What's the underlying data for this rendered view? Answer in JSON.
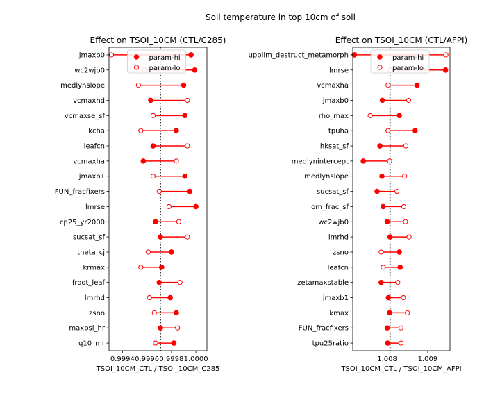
{
  "suptitle": "Soil temperature in top 10cm of soil",
  "colors": {
    "hi": "#ff0000",
    "lo": "#ff0000",
    "connector": "#ff0000",
    "refline": "#000000"
  },
  "chart_data": [
    {
      "type": "scatter",
      "title": "Effect on TSOI_10CM (CTL/C285)",
      "xlabel": "TSOI_10CM_CTL / TSOI_10CM_C285",
      "xlim": [
        0.99929,
        1.00009
      ],
      "xticks": [
        0.9994,
        0.9996,
        0.9998,
        1.0
      ],
      "xtick_labels": [
        "0.9994",
        "0.9996",
        "0.9998",
        "1.0000"
      ],
      "ref_x": 0.99971,
      "legend": {
        "position": "top-center",
        "entries": [
          "param-hi",
          "param-lo"
        ]
      },
      "categories": [
        "jmaxb0",
        "wc2wjb0",
        "medlynslope",
        "vcmaxhd",
        "vcmaxse_sf",
        "kcha",
        "leafcn",
        "vcmaxha",
        "jmaxb1",
        "FUN_fracfixers",
        "lmrse",
        "cp25_yr2000",
        "sucsat_sf",
        "theta_cj",
        "krmax",
        "froot_leaf",
        "lmrhd",
        "zsno",
        "maxpsi_hr",
        "q10_mr"
      ],
      "series": [
        {
          "name": "param-hi",
          "values": [
            0.99996,
            0.99999,
            0.9999,
            0.99963,
            0.99991,
            0.99984,
            0.99965,
            0.99957,
            0.99991,
            0.99995,
            1.0,
            0.99967,
            0.99971,
            0.9998,
            0.99972,
            0.9997,
            0.99979,
            0.99984,
            0.99971,
            0.99982
          ]
        },
        {
          "name": "param-lo",
          "values": [
            0.99931,
            0.99958,
            0.99953,
            0.99993,
            0.99965,
            0.99955,
            0.99993,
            0.99984,
            0.99965,
            0.9997,
            0.99978,
            0.99986,
            0.99993,
            0.99961,
            0.99955,
            0.99987,
            0.99962,
            0.99966,
            0.99985,
            0.99967
          ]
        }
      ]
    },
    {
      "type": "scatter",
      "title": "Effect on TSOI_10CM (CTL/AFPI)",
      "xlabel": "TSOI_10CM_CTL / TSOI_10CM_AFPI",
      "xlim": [
        1.00715,
        1.00955
      ],
      "xticks": [
        1.008,
        1.009
      ],
      "xtick_labels": [
        "1.008",
        "1.009"
      ],
      "ref_x": 1.00807,
      "legend": {
        "position": "top-center",
        "entries": [
          "param-hi",
          "param-lo"
        ]
      },
      "categories": [
        "upplim_destruct_metamorph",
        "lmrse",
        "vcmaxha",
        "jmaxb0",
        "rho_max",
        "tpuha",
        "hksat_sf",
        "medlynintercept",
        "medlynslope",
        "sucsat_sf",
        "om_frac_sf",
        "wc2wjb0",
        "lmrhd",
        "zsno",
        "leafcn",
        "zetamaxstable",
        "jmaxb1",
        "kmax",
        "FUN_fracfixers",
        "tpu25ratio"
      ],
      "series": [
        {
          "name": "param-hi",
          "values": [
            1.00719,
            1.00944,
            1.00874,
            1.00788,
            1.0083,
            1.00869,
            1.00782,
            1.00741,
            1.00787,
            1.00775,
            1.0079,
            1.008,
            1.00807,
            1.0083,
            1.00832,
            1.00785,
            1.00803,
            1.00806,
            1.008,
            1.00801
          ]
        },
        {
          "name": "param-lo",
          "values": [
            1.00945,
            1.00808,
            1.00802,
            1.00853,
            1.00758,
            1.00802,
            1.00846,
            1.00806,
            1.00843,
            1.00824,
            1.00841,
            1.00845,
            1.00854,
            1.00785,
            1.0079,
            1.00826,
            1.0084,
            1.0085,
            1.00834,
            1.00834
          ]
        }
      ]
    }
  ]
}
